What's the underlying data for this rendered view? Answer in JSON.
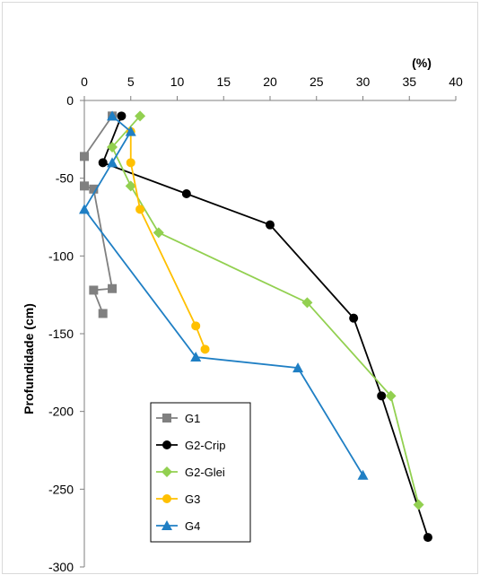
{
  "chart_data": {
    "type": "line",
    "title": "",
    "xlabel": "(%)",
    "ylabel": "Profundidade (cm)",
    "xlim": [
      0,
      40
    ],
    "ylim": [
      -300,
      0
    ],
    "x_axis_position": "top",
    "x_ticks": [
      "0",
      "5",
      "10",
      "15",
      "20",
      "25",
      "30",
      "35",
      "40"
    ],
    "y_ticks": [
      "0",
      "-50",
      "-100",
      "-150",
      "-200",
      "-250",
      "-300"
    ],
    "grid": false,
    "legend_position": "bottom-left-inside",
    "series": [
      {
        "name": "G1",
        "color": "#808080",
        "marker": "square",
        "points": [
          [
            3,
            -10
          ],
          [
            0,
            -36
          ],
          [
            0,
            -55
          ],
          [
            1,
            -57
          ],
          [
            3,
            -121
          ],
          [
            1,
            -122
          ],
          [
            2,
            -137
          ]
        ]
      },
      {
        "name": "G2-Crip",
        "color": "#000000",
        "marker": "circle",
        "points": [
          [
            4,
            -10
          ],
          [
            2,
            -40
          ],
          [
            11,
            -60
          ],
          [
            20,
            -80
          ],
          [
            29,
            -140
          ],
          [
            32,
            -190
          ],
          [
            37,
            -281
          ]
        ]
      },
      {
        "name": "G2-Glei",
        "color": "#92d050",
        "marker": "diamond",
        "points": [
          [
            6,
            -10
          ],
          [
            3,
            -30
          ],
          [
            5,
            -55
          ],
          [
            8,
            -85
          ],
          [
            24,
            -130
          ],
          [
            33,
            -190
          ],
          [
            36,
            -260
          ]
        ]
      },
      {
        "name": "G3",
        "color": "#ffc000",
        "marker": "circle",
        "points": [
          [
            5,
            -20
          ],
          [
            5,
            -40
          ],
          [
            6,
            -70
          ],
          [
            12,
            -145
          ],
          [
            13,
            -160
          ]
        ]
      },
      {
        "name": "G4",
        "color": "#1f7fc4",
        "marker": "triangle",
        "points": [
          [
            3,
            -10
          ],
          [
            5,
            -20
          ],
          [
            3,
            -40
          ],
          [
            0,
            -70
          ],
          [
            12,
            -165
          ],
          [
            23,
            -172
          ],
          [
            30,
            -241
          ]
        ]
      }
    ]
  }
}
